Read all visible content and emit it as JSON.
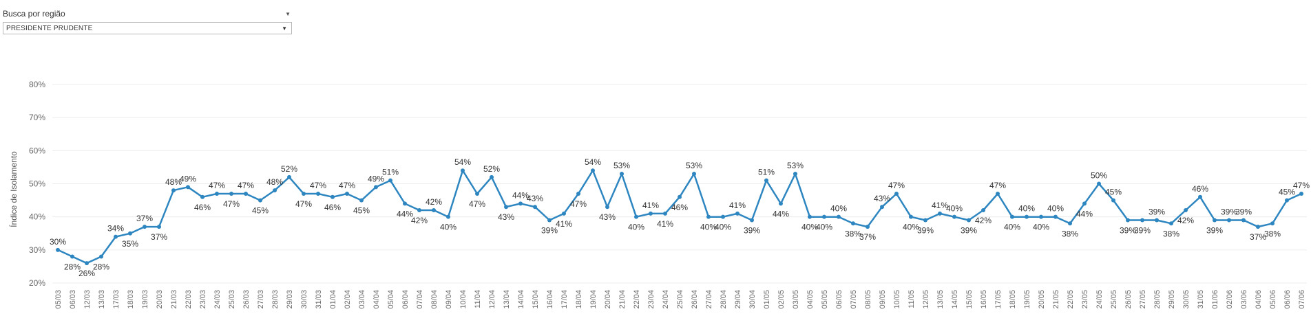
{
  "filter": {
    "label": "Busca por região",
    "selected": "PRESIDENTE PRUDENTE"
  },
  "colors": {
    "line": "#2e86c1",
    "grid": "#ececec",
    "text": "#333333"
  },
  "chart_data": {
    "type": "line",
    "ylabel": "Índice de Isolamento",
    "ylim": [
      0.2,
      0.8
    ],
    "yticks": [
      "20%",
      "30%",
      "40%",
      "50%",
      "60%",
      "70%",
      "80%"
    ],
    "grid": true,
    "categories": [
      "05/03",
      "06/03",
      "12/03",
      "13/03",
      "17/03",
      "18/03",
      "19/03",
      "20/03",
      "21/03",
      "22/03",
      "23/03",
      "24/03",
      "25/03",
      "26/03",
      "27/03",
      "28/03",
      "29/03",
      "30/03",
      "31/03",
      "01/04",
      "02/04",
      "03/04",
      "04/04",
      "05/04",
      "06/04",
      "07/04",
      "08/04",
      "09/04",
      "10/04",
      "11/04",
      "12/04",
      "13/04",
      "14/04",
      "15/04",
      "16/04",
      "17/04",
      "18/04",
      "19/04",
      "20/04",
      "21/04",
      "22/04",
      "23/04",
      "24/04",
      "25/04",
      "26/04",
      "27/04",
      "28/04",
      "29/04",
      "30/04",
      "01/05",
      "02/05",
      "03/05",
      "04/05",
      "05/05",
      "06/05",
      "07/05",
      "08/05",
      "09/05",
      "10/05",
      "11/05",
      "12/05",
      "13/05",
      "14/05",
      "15/05",
      "16/05",
      "17/05",
      "18/05",
      "19/05",
      "20/05",
      "21/05",
      "22/05",
      "23/05",
      "24/05",
      "25/05",
      "26/05",
      "27/05",
      "28/05",
      "29/05",
      "30/05",
      "31/05",
      "01/06",
      "02/06",
      "03/06",
      "04/06",
      "05/06",
      "06/06",
      "07/06"
    ],
    "series": [
      {
        "values": [
          0.3,
          0.28,
          0.26,
          0.28,
          0.34,
          0.35,
          0.37,
          0.37,
          0.48,
          0.49,
          0.46,
          0.47,
          0.47,
          0.47,
          0.45,
          0.48,
          0.52,
          0.47,
          0.47,
          0.46,
          0.47,
          0.45,
          0.49,
          0.51,
          0.44,
          0.42,
          0.42,
          0.4,
          0.54,
          0.47,
          0.52,
          0.43,
          0.44,
          0.43,
          0.39,
          0.41,
          0.47,
          0.54,
          0.43,
          0.53,
          0.4,
          0.41,
          0.41,
          0.46,
          0.53,
          0.4,
          0.4,
          0.41,
          0.39,
          0.51,
          0.44,
          0.53,
          0.4,
          0.4,
          0.4,
          0.38,
          0.37,
          0.43,
          0.47,
          0.4,
          0.39,
          0.41,
          0.4,
          0.39,
          0.42,
          0.47,
          0.4,
          0.4,
          0.4,
          0.4,
          0.38,
          0.44,
          0.5,
          0.45,
          0.39,
          0.39,
          0.39,
          0.38,
          0.42,
          0.46,
          0.39,
          0.39,
          0.39,
          0.37,
          0.38,
          0.45,
          0.47
        ],
        "labels": [
          "30%",
          "28%",
          "26%",
          "28%",
          "34%",
          "35%",
          "37%",
          "37%",
          "48%",
          "49%",
          "46%",
          "47%",
          "47%",
          "47%",
          "45%",
          "48%",
          "52%",
          "47%",
          "47%",
          "46%",
          "47%",
          "45%",
          "49%",
          "51%",
          "44%",
          "42%",
          "42%",
          "40%",
          "54%",
          "47%",
          "52%",
          "43%",
          "44%",
          "43%",
          "39%",
          "41%",
          "47%",
          "54%",
          "43%",
          "53%",
          "40%",
          "41%",
          "41%",
          "46%",
          "53%",
          "40%",
          "40%",
          "41%",
          "39%",
          "51%",
          "44%",
          "53%",
          "40%",
          "40%",
          "40%",
          "38%",
          "37%",
          "43%",
          "47%",
          "40%",
          "39%",
          "41%",
          "40%",
          "39%",
          "42%",
          "47%",
          "40%",
          "40%",
          "40%",
          "40%",
          "38%",
          "44%",
          "50%",
          "45%",
          "39%",
          "39%",
          "39%",
          "38%",
          "42%",
          "46%",
          "39%",
          "39%",
          "39%",
          "37%",
          "38%",
          "45%",
          "47%"
        ],
        "label_pos": [
          "above",
          "below",
          "below",
          "below",
          "above",
          "below",
          "above",
          "below",
          "above",
          "above",
          "below",
          "above",
          "below",
          "above",
          "below",
          "above",
          "above",
          "below",
          "above",
          "below",
          "above",
          "below",
          "above",
          "above",
          "below",
          "below",
          "above",
          "below",
          "above",
          "below",
          "above",
          "below",
          "above",
          "above",
          "below",
          "below",
          "below",
          "above",
          "below",
          "above",
          "below",
          "above",
          "below",
          "below",
          "above",
          "below",
          "below",
          "above",
          "below",
          "above",
          "below",
          "above",
          "below",
          "below",
          "above",
          "below",
          "below",
          "above",
          "above",
          "below",
          "below",
          "above",
          "above",
          "below",
          "below",
          "above",
          "below",
          "above",
          "below",
          "above",
          "below",
          "below",
          "above",
          "above",
          "below",
          "below",
          "above",
          "below",
          "below",
          "above",
          "below",
          "above",
          "above",
          "below",
          "below",
          "above",
          "above"
        ]
      }
    ]
  }
}
